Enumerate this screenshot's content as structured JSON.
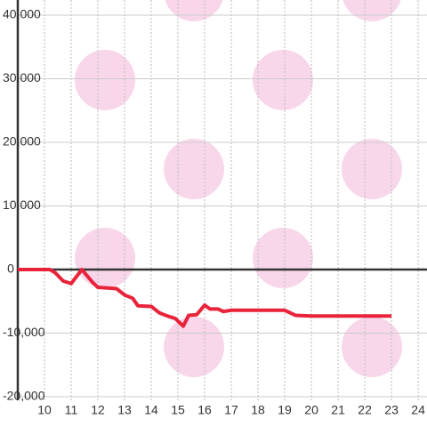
{
  "chart_data": {
    "type": "line",
    "x": [
      9,
      10.2,
      10.4,
      10.7,
      11,
      11.4,
      11.8,
      12,
      12.7,
      13,
      13.3,
      13.5,
      14,
      14.3,
      14.6,
      14.9,
      15.2,
      15.4,
      15.7,
      16,
      16.2,
      16.5,
      16.7,
      17,
      18,
      19,
      19.4,
      20,
      23
    ],
    "series": [
      {
        "color": "#e8233a",
        "values": [
          0,
          0,
          -500,
          -1800,
          -2200,
          0,
          -2000,
          -2800,
          -3000,
          -4000,
          -4500,
          -5700,
          -5800,
          -6800,
          -7300,
          -7700,
          -8900,
          -7200,
          -7100,
          -5600,
          -6200,
          -6200,
          -6600,
          -6400,
          -6400,
          -6400,
          -7200,
          -7300,
          -7300
        ]
      }
    ],
    "xlim": [
      9,
      24.33
    ],
    "xticks": [
      10,
      11,
      12,
      13,
      14,
      15,
      16,
      17,
      18,
      19,
      20,
      21,
      22,
      23,
      24
    ],
    "ylim": [
      -20000,
      40000
    ],
    "yticks": [
      {
        "value": -20000,
        "label": "-20,000"
      },
      {
        "value": -10000,
        "label": "-10,000"
      },
      0,
      {
        "value": 10000,
        "label": "10,000"
      },
      {
        "value": 20000,
        "label": "20,000"
      },
      {
        "value": 30000,
        "label": "30,000"
      },
      {
        "value": 40000,
        "label": "40,000"
      }
    ],
    "grid": true
  }
}
